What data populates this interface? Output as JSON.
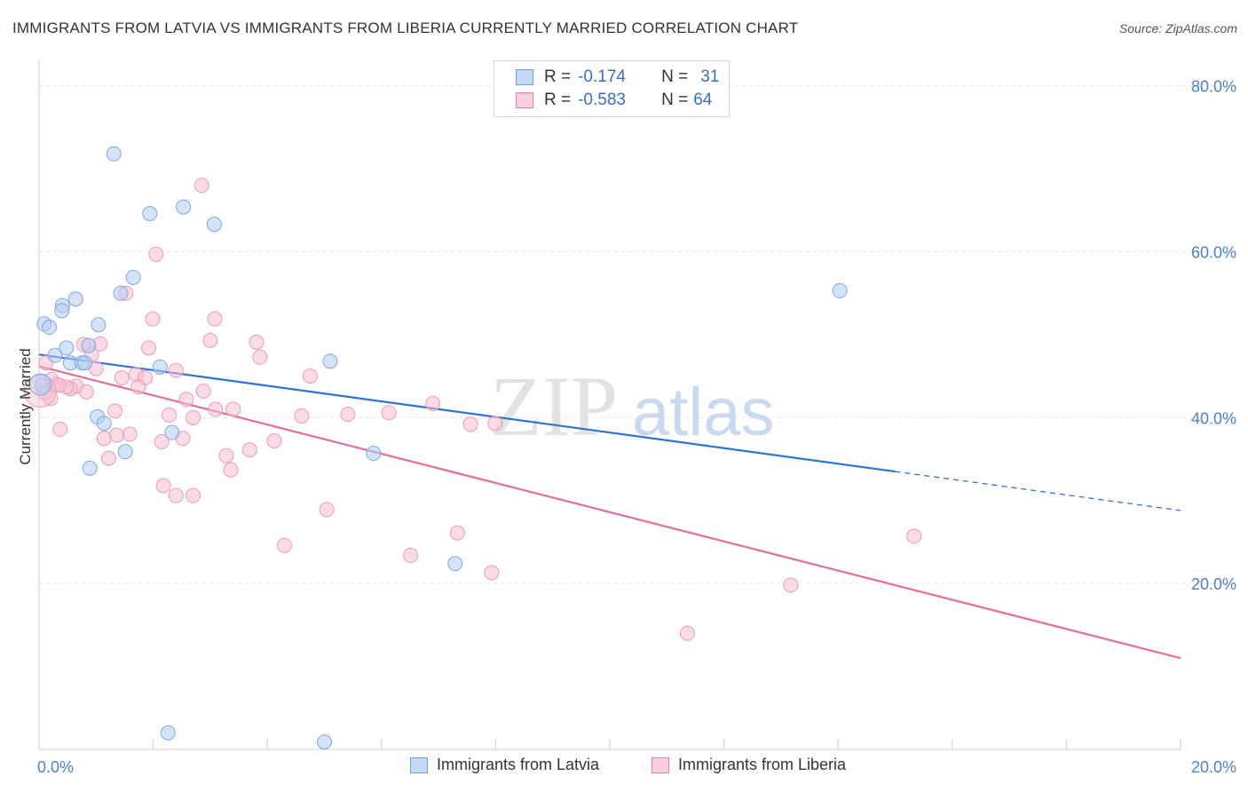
{
  "title": "IMMIGRANTS FROM LATVIA VS IMMIGRANTS FROM LIBERIA CURRENTLY MARRIED CORRELATION CHART",
  "source": "Source: ZipAtlas.com",
  "watermark": {
    "zip": "ZIP",
    "atlas": "atlas"
  },
  "legend": {
    "rows": [
      {
        "r_label": "R =",
        "r_value": "-0.174",
        "n_label": "N =",
        "n_value": "31",
        "color": "#6fa0e0"
      },
      {
        "r_label": "R =",
        "r_value": "-0.583",
        "n_label": "N =",
        "n_value": "64",
        "color": "#e882a6"
      }
    ]
  },
  "bottom_legend": [
    {
      "label": "Immigrants from Latvia",
      "color": "#6fa0e0"
    },
    {
      "label": "Immigrants from Liberia",
      "color": "#e882a6"
    }
  ],
  "chart_data": {
    "type": "scatter",
    "title": "IMMIGRANTS FROM LATVIA VS IMMIGRANTS FROM LIBERIA CURRENTLY MARRIED CORRELATION CHART",
    "xlabel": "",
    "ylabel": "Currently Married",
    "xlim": [
      0,
      20
    ],
    "ylim": [
      0,
      82
    ],
    "x_tick_labels": [
      "0.0%",
      "20.0%"
    ],
    "y_ticks": [
      20,
      40,
      60,
      80
    ],
    "y_tick_labels": [
      "20.0%",
      "40.0%",
      "60.0%",
      "80.0%"
    ],
    "grid": true,
    "legend_position": "top-center",
    "series": [
      {
        "name": "Immigrants from Latvia",
        "color": "#6fa0e0",
        "points": [
          [
            1.31,
            71.8
          ],
          [
            1.94,
            64.6
          ],
          [
            2.53,
            65.4
          ],
          [
            3.07,
            63.3
          ],
          [
            1.65,
            56.9
          ],
          [
            1.43,
            55.0
          ],
          [
            0.64,
            54.3
          ],
          [
            0.41,
            53.5
          ],
          [
            0.4,
            52.9
          ],
          [
            0.09,
            51.3
          ],
          [
            0.18,
            50.9
          ],
          [
            1.04,
            51.2
          ],
          [
            0.87,
            48.7
          ],
          [
            0.48,
            48.4
          ],
          [
            0.28,
            47.5
          ],
          [
            0.55,
            46.6
          ],
          [
            0.75,
            46.6
          ],
          [
            0.8,
            46.6
          ],
          [
            2.12,
            46.1
          ],
          [
            5.1,
            46.8
          ],
          [
            0.05,
            43.9
          ],
          [
            1.02,
            40.1
          ],
          [
            1.14,
            39.3
          ],
          [
            2.33,
            38.2
          ],
          [
            1.51,
            35.9
          ],
          [
            0.89,
            33.9
          ],
          [
            5.86,
            35.7
          ],
          [
            14.03,
            55.3
          ],
          [
            7.29,
            22.4
          ],
          [
            2.26,
            2.0
          ],
          [
            5.0,
            0.9
          ]
        ],
        "trend": {
          "x": [
            0,
            15.0
          ],
          "y": [
            47.6,
            33.5
          ],
          "dashed_to": [
            20,
            28.8
          ]
        }
      },
      {
        "name": "Immigrants from Liberia",
        "color": "#e882a6",
        "points": [
          [
            2.85,
            68.0
          ],
          [
            2.05,
            59.7
          ],
          [
            1.52,
            55.0
          ],
          [
            1.99,
            51.9
          ],
          [
            3.08,
            51.9
          ],
          [
            3.0,
            49.3
          ],
          [
            3.81,
            49.1
          ],
          [
            0.78,
            48.8
          ],
          [
            1.07,
            48.9
          ],
          [
            1.92,
            48.4
          ],
          [
            0.92,
            47.6
          ],
          [
            3.87,
            47.3
          ],
          [
            1.0,
            45.9
          ],
          [
            2.4,
            45.7
          ],
          [
            1.7,
            45.2
          ],
          [
            1.45,
            44.8
          ],
          [
            1.86,
            44.8
          ],
          [
            4.75,
            45.0
          ],
          [
            0.3,
            44.0
          ],
          [
            0.65,
            43.8
          ],
          [
            0.55,
            43.5
          ],
          [
            0.48,
            43.7
          ],
          [
            1.74,
            43.7
          ],
          [
            2.88,
            43.2
          ],
          [
            0.83,
            43.1
          ],
          [
            0.1,
            43.0
          ],
          [
            2.58,
            42.2
          ],
          [
            6.9,
            41.7
          ],
          [
            3.09,
            41.0
          ],
          [
            3.4,
            41.0
          ],
          [
            1.33,
            40.8
          ],
          [
            2.28,
            40.3
          ],
          [
            5.41,
            40.4
          ],
          [
            6.13,
            40.6
          ],
          [
            4.6,
            40.2
          ],
          [
            2.7,
            40.0
          ],
          [
            7.56,
            39.2
          ],
          [
            7.99,
            39.3
          ],
          [
            0.37,
            38.6
          ],
          [
            1.59,
            38.0
          ],
          [
            1.36,
            37.9
          ],
          [
            1.14,
            37.5
          ],
          [
            2.52,
            37.5
          ],
          [
            2.15,
            37.1
          ],
          [
            4.12,
            37.2
          ],
          [
            3.69,
            36.1
          ],
          [
            3.28,
            35.4
          ],
          [
            1.22,
            35.1
          ],
          [
            3.36,
            33.7
          ],
          [
            2.18,
            31.8
          ],
          [
            2.4,
            30.6
          ],
          [
            2.7,
            30.6
          ],
          [
            5.04,
            28.9
          ],
          [
            7.33,
            26.1
          ],
          [
            4.3,
            24.6
          ],
          [
            6.51,
            23.4
          ],
          [
            7.93,
            21.3
          ],
          [
            13.17,
            19.8
          ],
          [
            15.33,
            25.7
          ],
          [
            11.36,
            14.0
          ],
          [
            0.12,
            46.6
          ],
          [
            0.22,
            44.6
          ],
          [
            0.35,
            43.9
          ],
          [
            0.2,
            42.3
          ]
        ],
        "trend": {
          "x": [
            0,
            20
          ],
          "y": [
            46.2,
            11.0
          ]
        }
      }
    ]
  }
}
